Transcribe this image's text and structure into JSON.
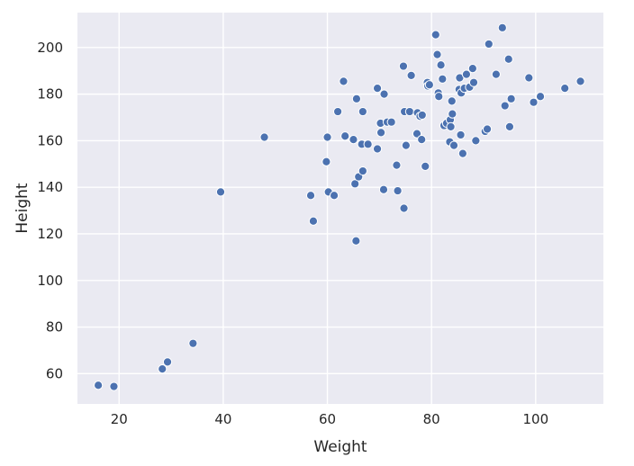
{
  "chart_data": {
    "type": "scatter",
    "title": "",
    "xlabel": "Weight",
    "ylabel": "Height",
    "xlim": [
      12,
      113
    ],
    "ylim": [
      47,
      215
    ],
    "xticks": [
      20,
      40,
      60,
      80,
      100
    ],
    "yticks": [
      60,
      80,
      100,
      120,
      140,
      160,
      180,
      200
    ],
    "grid": true,
    "colors": {
      "background": "#eaeaf2",
      "grid": "#ffffff",
      "point": "#4c72b0"
    },
    "series": [
      {
        "points": [
          [
            16,
            55
          ],
          [
            19,
            54.5
          ],
          [
            28.3,
            62
          ],
          [
            29.3,
            65
          ],
          [
            34.2,
            73
          ],
          [
            39.5,
            138
          ],
          [
            47.9,
            161.5
          ],
          [
            56.8,
            136.5
          ],
          [
            57.3,
            125.5
          ],
          [
            59.8,
            151
          ],
          [
            60,
            161.5
          ],
          [
            60.2,
            138
          ],
          [
            61.3,
            136.5
          ],
          [
            62,
            172.5
          ],
          [
            63.1,
            185.5
          ],
          [
            63.4,
            162
          ],
          [
            65,
            160.5
          ],
          [
            65.3,
            141.5
          ],
          [
            65.5,
            117
          ],
          [
            65.6,
            178
          ],
          [
            66,
            144.5
          ],
          [
            66.6,
            158.5
          ],
          [
            66.8,
            147
          ],
          [
            66.8,
            172.5
          ],
          [
            67.8,
            158.5
          ],
          [
            69.6,
            182.5
          ],
          [
            69.6,
            156.5
          ],
          [
            70.2,
            167.5
          ],
          [
            70.3,
            163.5
          ],
          [
            70.8,
            139
          ],
          [
            70.9,
            180
          ],
          [
            71.5,
            168
          ],
          [
            72.3,
            168
          ],
          [
            73.3,
            149.5
          ],
          [
            73.5,
            138.5
          ],
          [
            74.6,
            192
          ],
          [
            74.7,
            131
          ],
          [
            74.8,
            172.5
          ],
          [
            75.1,
            158
          ],
          [
            75.8,
            172.5
          ],
          [
            76.1,
            188
          ],
          [
            77.2,
            163
          ],
          [
            77.3,
            172
          ],
          [
            77.8,
            170.5
          ],
          [
            78.1,
            160.5
          ],
          [
            78.2,
            171
          ],
          [
            78.8,
            149
          ],
          [
            79.2,
            185
          ],
          [
            79.3,
            183.5
          ],
          [
            79.6,
            184
          ],
          [
            80.8,
            205.5
          ],
          [
            81.1,
            197
          ],
          [
            81.3,
            180.5
          ],
          [
            81.4,
            179
          ],
          [
            81.8,
            192.5
          ],
          [
            82.1,
            186.5
          ],
          [
            82.4,
            166.5
          ],
          [
            82.9,
            167.5
          ],
          [
            83.5,
            159.5
          ],
          [
            83.6,
            169
          ],
          [
            83.7,
            166
          ],
          [
            83.9,
            177
          ],
          [
            84,
            171.5
          ],
          [
            84.3,
            158
          ],
          [
            85.3,
            182
          ],
          [
            85.4,
            187
          ],
          [
            85.6,
            162.5
          ],
          [
            85.7,
            180.5
          ],
          [
            86,
            154.5
          ],
          [
            86.3,
            182.5
          ],
          [
            86.7,
            188.5
          ],
          [
            87.3,
            183
          ],
          [
            87.9,
            191
          ],
          [
            88.1,
            185
          ],
          [
            88.5,
            160
          ],
          [
            90.3,
            164
          ],
          [
            90.7,
            165
          ],
          [
            91,
            201.5
          ],
          [
            92.4,
            188.5
          ],
          [
            93.6,
            208.5
          ],
          [
            94.1,
            175
          ],
          [
            94.8,
            195
          ],
          [
            95,
            166
          ],
          [
            95.3,
            178
          ],
          [
            98.7,
            187
          ],
          [
            99.6,
            176.5
          ],
          [
            100.9,
            179
          ],
          [
            105.6,
            182.5
          ],
          [
            108.6,
            185.5
          ]
        ]
      }
    ]
  }
}
